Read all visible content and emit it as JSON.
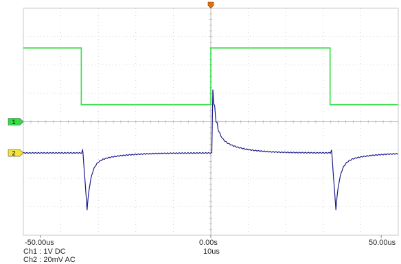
{
  "chart_data": {
    "type": "line",
    "x_unit": "us",
    "x_range": [
      -55,
      55
    ],
    "x_tick_labels": [
      "-50.00us",
      "0.00s",
      "50.00us"
    ],
    "timebase": "10us",
    "channels": [
      {
        "id": "1",
        "marker_label": "1",
        "color": "#33dd44",
        "setting": "Ch1 : 1V  DC"
      },
      {
        "id": "2",
        "marker_label": "2",
        "color": "#1a1a8c",
        "setting": "Ch2 : 20mV  AC"
      }
    ],
    "series": [
      {
        "channel": "1",
        "kind": "square",
        "high_div": 2.6,
        "low_div": 0.6,
        "edges_us": [
          -38,
          0,
          35
        ],
        "start_level": "high"
      },
      {
        "channel": "2",
        "kind": "spikes",
        "baseline_div": -1.1,
        "spikes": [
          {
            "t_us": -37.5,
            "peak_div": -3.1,
            "direction": "down"
          },
          {
            "t_us": 0.3,
            "peak_div": 1.15,
            "direction": "up"
          },
          {
            "t_us": 35.5,
            "peak_div": -3.1,
            "direction": "down"
          }
        ]
      }
    ],
    "grid": true
  },
  "colors": {
    "grid": "#c8c8c8",
    "ch1": "#33dd44",
    "ch2": "#1a1a8c",
    "trigger": "#e07010"
  },
  "icons": {
    "trigger_marker": "trigger-position-icon",
    "ch1_marker": "channel-1-ground-marker-icon",
    "ch2_marker": "channel-2-ground-marker-icon"
  },
  "settings_line1": "Ch1 : 1V  DC",
  "settings_line2": "Ch2 : 20mV  AC",
  "timebase_label": "10us"
}
